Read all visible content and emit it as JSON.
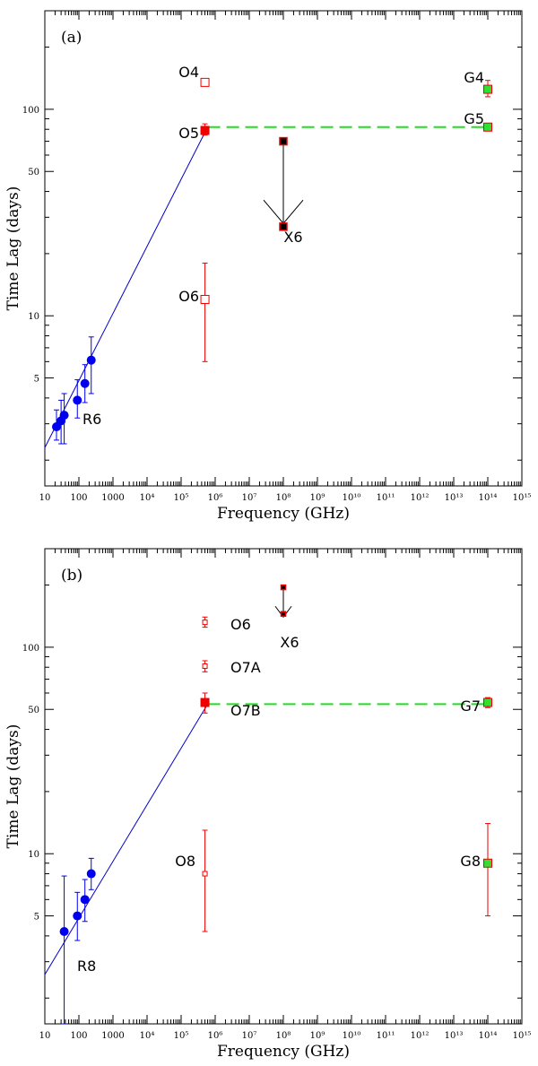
{
  "colors": {
    "radio": "#0000ee",
    "optical": "#ee0000",
    "gamma_fill": "#33dd33",
    "xray_fill": "#000000",
    "fit_line": "#0000cc",
    "plateau_line": "#22dd22"
  },
  "chart_data": [
    {
      "type": "scatter",
      "panel_label": "(a)",
      "xlabel": "Frequency (GHz)",
      "ylabel": "Time Lag (days)",
      "xscale": "log",
      "yscale": "log",
      "xlim": [
        10,
        1000000000000000.0
      ],
      "ylim": [
        1.5,
        300
      ],
      "x_ticks": [
        {
          "v": 10,
          "t": "10"
        },
        {
          "v": 100,
          "t": "100"
        },
        {
          "v": 1000,
          "t": "1000"
        },
        {
          "v": 10000.0,
          "t": "10⁴"
        },
        {
          "v": 100000.0,
          "t": "10⁵"
        },
        {
          "v": 1000000.0,
          "t": "10⁶"
        },
        {
          "v": 10000000.0,
          "t": "10⁷"
        },
        {
          "v": 100000000.0,
          "t": "10⁸"
        },
        {
          "v": 1000000000.0,
          "t": "10⁹"
        },
        {
          "v": 10000000000.0,
          "t": "10¹⁰"
        },
        {
          "v": 100000000000.0,
          "t": "10¹¹"
        },
        {
          "v": 1000000000000.0,
          "t": "10¹²"
        },
        {
          "v": 10000000000000.0,
          "t": "10¹³"
        },
        {
          "v": 100000000000000.0,
          "t": "10¹⁴"
        },
        {
          "v": 1000000000000000.0,
          "t": "10¹⁵"
        }
      ],
      "y_ticks": [
        {
          "v": 5,
          "t": "5"
        },
        {
          "v": 10,
          "t": "10"
        },
        {
          "v": 50,
          "t": "50"
        },
        {
          "v": 100,
          "t": "100"
        }
      ],
      "series": [
        {
          "group": "radio",
          "label": "R6",
          "points": [
            {
              "x": 22,
              "y": 2.9,
              "lo": 2.5,
              "hi": 3.5
            },
            {
              "x": 30,
              "y": 3.1,
              "lo": 2.4,
              "hi": 3.9
            },
            {
              "x": 37,
              "y": 3.3,
              "lo": 2.4,
              "hi": 4.2
            },
            {
              "x": 90,
              "y": 3.9,
              "lo": 3.2,
              "hi": 4.9
            },
            {
              "x": 150,
              "y": 4.7,
              "lo": 3.8,
              "hi": 5.8
            },
            {
              "x": 230,
              "y": 6.1,
              "lo": 4.2,
              "hi": 7.9
            }
          ]
        },
        {
          "group": "optical",
          "label": "O4",
          "points": [
            {
              "x": 500000.0,
              "y": 135,
              "lo": 130,
              "hi": 140
            }
          ]
        },
        {
          "group": "optical",
          "label": "O5",
          "points": [
            {
              "x": 500000.0,
              "y": 79,
              "lo": 75,
              "hi": 85
            }
          ]
        },
        {
          "group": "optical",
          "label": "O6",
          "points": [
            {
              "x": 500000.0,
              "y": 12,
              "lo": 6,
              "hi": 18
            }
          ]
        },
        {
          "group": "xray",
          "label": "X6",
          "points": [
            {
              "x": 100000000.0,
              "y": 70
            },
            {
              "x": 100000000.0,
              "y": 27
            }
          ]
        },
        {
          "group": "gamma",
          "label": "G4",
          "points": [
            {
              "x": 100000000000000.0,
              "y": 125,
              "lo": 115,
              "hi": 138
            }
          ]
        },
        {
          "group": "gamma",
          "label": "G5",
          "points": [
            {
              "x": 100000000000000.0,
              "y": 82,
              "lo": 80,
              "hi": 84
            }
          ]
        }
      ],
      "fit_line": {
        "x": [
          10,
          600000.0
        ],
        "y": [
          2.3,
          82
        ]
      },
      "plateau_line": {
        "x": [
          600000.0,
          100000000000000.0
        ],
        "y": [
          82,
          82
        ]
      },
      "x6_arrow": {
        "x": 100000000.0,
        "from": 70,
        "to": 28
      }
    },
    {
      "type": "scatter",
      "panel_label": "(b)",
      "xlabel": "Frequency (GHz)",
      "ylabel": "Time Lag (days)",
      "xscale": "log",
      "yscale": "log",
      "xlim": [
        10,
        1000000000000000.0
      ],
      "ylim": [
        1.5,
        300
      ],
      "x_ticks": [
        {
          "v": 10,
          "t": "10"
        },
        {
          "v": 100,
          "t": "100"
        },
        {
          "v": 1000,
          "t": "1000"
        },
        {
          "v": 10000.0,
          "t": "10⁴"
        },
        {
          "v": 100000.0,
          "t": "10⁵"
        },
        {
          "v": 1000000.0,
          "t": "10⁶"
        },
        {
          "v": 10000000.0,
          "t": "10⁷"
        },
        {
          "v": 100000000.0,
          "t": "10⁸"
        },
        {
          "v": 1000000000.0,
          "t": "10⁹"
        },
        {
          "v": 10000000000.0,
          "t": "10¹⁰"
        },
        {
          "v": 100000000000.0,
          "t": "10¹¹"
        },
        {
          "v": 1000000000000.0,
          "t": "10¹²"
        },
        {
          "v": 10000000000000.0,
          "t": "10¹³"
        },
        {
          "v": 100000000000000.0,
          "t": "10¹⁴"
        },
        {
          "v": 1000000000000000.0,
          "t": "10¹⁵"
        }
      ],
      "y_ticks": [
        {
          "v": 5,
          "t": "5"
        },
        {
          "v": 10,
          "t": "10"
        },
        {
          "v": 50,
          "t": "50"
        },
        {
          "v": 100,
          "t": "100"
        }
      ],
      "series": [
        {
          "group": "radio",
          "label": "R8",
          "points": [
            {
              "x": 37,
              "y": 4.2,
              "lo": 1.5,
              "hi": 7.8
            },
            {
              "x": 90,
              "y": 5.0,
              "lo": 3.8,
              "hi": 6.5
            },
            {
              "x": 150,
              "y": 6.0,
              "lo": 4.7,
              "hi": 7.5
            },
            {
              "x": 230,
              "y": 8.0,
              "lo": 6.7,
              "hi": 9.5
            }
          ]
        },
        {
          "group": "optical",
          "label": "O6",
          "points": [
            {
              "x": 500000.0,
              "y": 132,
              "lo": 125,
              "hi": 140
            }
          ]
        },
        {
          "group": "optical",
          "label": "O7A",
          "points": [
            {
              "x": 500000.0,
              "y": 81,
              "lo": 76,
              "hi": 86
            }
          ]
        },
        {
          "group": "optical",
          "label": "O7B",
          "points": [
            {
              "x": 500000.0,
              "y": 54,
              "lo": 48,
              "hi": 60
            }
          ]
        },
        {
          "group": "optical",
          "label": "O8",
          "points": [
            {
              "x": 500000.0,
              "y": 8,
              "lo": 4.2,
              "hi": 13
            }
          ]
        },
        {
          "group": "xray",
          "label": "X6",
          "points": [
            {
              "x": 100000000.0,
              "y": 195
            },
            {
              "x": 100000000.0,
              "y": 145
            }
          ]
        },
        {
          "group": "gamma",
          "label": "G7",
          "points": [
            {
              "x": 100000000000000.0,
              "y": 54,
              "lo": 51,
              "hi": 57
            }
          ]
        },
        {
          "group": "gamma",
          "label": "G8",
          "points": [
            {
              "x": 100000000000000.0,
              "y": 9,
              "lo": 5,
              "hi": 14
            }
          ]
        }
      ],
      "fit_line": {
        "x": [
          10,
          600000.0
        ],
        "y": [
          2.6,
          53
        ]
      },
      "plateau_line": {
        "x": [
          600000.0,
          100000000000000.0
        ],
        "y": [
          53,
          53
        ]
      },
      "x6_arrow": {
        "x": 100000000.0,
        "from": 195,
        "to": 140
      }
    }
  ]
}
